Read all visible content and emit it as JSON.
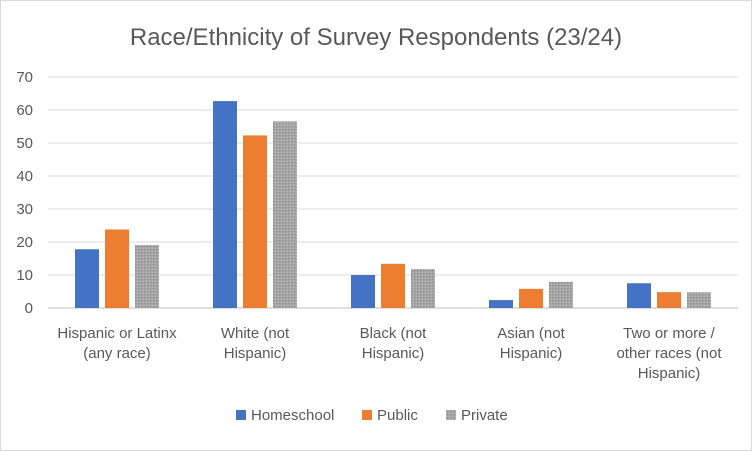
{
  "chart_data": {
    "type": "bar",
    "title": "Race/Ethnicity of Survey Respondents (23/24)",
    "xlabel": "",
    "ylabel": "",
    "ylim": [
      0,
      70
    ],
    "yticks": [
      0,
      10,
      20,
      30,
      40,
      50,
      60,
      70
    ],
    "grid": true,
    "legend_position": "bottom",
    "categories": [
      [
        "Hispanic or Latinx",
        "(any race)"
      ],
      [
        "White (not",
        "Hispanic)"
      ],
      [
        "Black (not",
        "Hispanic)"
      ],
      [
        "Asian (not",
        "Hispanic)"
      ],
      [
        "Two or more /",
        "other races (not",
        "Hispanic)"
      ]
    ],
    "series": [
      {
        "name": "Homeschool",
        "color": "#4472c4",
        "values": [
          17.8,
          62.7,
          10.0,
          2.4,
          7.5
        ]
      },
      {
        "name": "Public",
        "color": "#ed7d31",
        "values": [
          23.8,
          52.3,
          13.4,
          5.8,
          4.8
        ]
      },
      {
        "name": "Private",
        "color": "#a5a5a5",
        "values": [
          19.1,
          56.6,
          11.8,
          7.9,
          4.8
        ]
      }
    ]
  }
}
